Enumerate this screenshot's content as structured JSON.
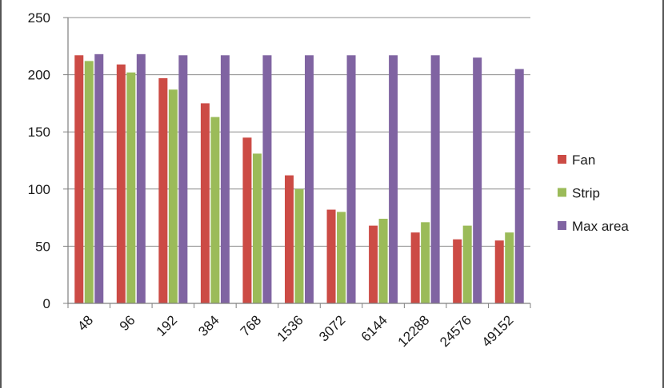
{
  "chart_data": {
    "type": "bar",
    "categories": [
      "48",
      "96",
      "192",
      "384",
      "768",
      "1536",
      "3072",
      "6144",
      "12288",
      "24576",
      "49152"
    ],
    "series": [
      {
        "name": "Fan",
        "color": "#cc4b45",
        "values": [
          217,
          209,
          197,
          175,
          145,
          112,
          82,
          68,
          62,
          56,
          55
        ]
      },
      {
        "name": "Strip",
        "color": "#9bbb59",
        "values": [
          212,
          202,
          187,
          163,
          131,
          100,
          80,
          74,
          71,
          68,
          62
        ]
      },
      {
        "name": "Max area",
        "color": "#8064a2",
        "values": [
          218,
          218,
          217,
          217,
          217,
          217,
          217,
          217,
          217,
          215,
          205
        ]
      }
    ],
    "ylim": [
      0,
      250
    ],
    "yticks": [
      0,
      50,
      100,
      150,
      200,
      250
    ],
    "grid": true,
    "legend": "right",
    "title": "",
    "xlabel": "",
    "ylabel": ""
  }
}
